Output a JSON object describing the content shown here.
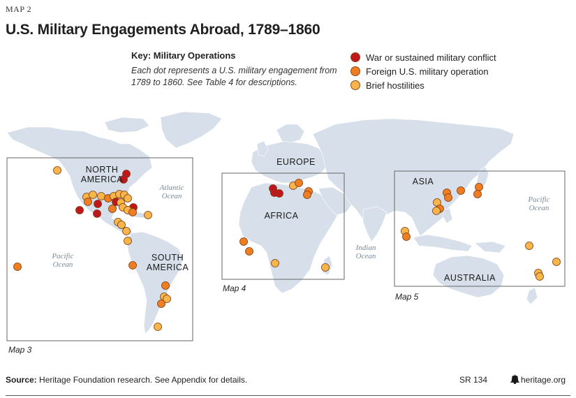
{
  "header": {
    "label": "MAP 2",
    "title": "U.S. Military Engagements Abroad, 1789–1860"
  },
  "key": {
    "title": "Key: Military Operations",
    "description": "Each dot represents a U.S. military engagement from 1789 to 1860. See Table 4 for descriptions.",
    "items": [
      {
        "label": "War or sustained military conflict",
        "color": "#c0171d"
      },
      {
        "label": "Foreign U.S. military operation",
        "color": "#ef7d22"
      },
      {
        "label": "Brief hostilities",
        "color": "#f7b54a"
      }
    ]
  },
  "map": {
    "land_color": "#d7e0ea",
    "regions": {
      "north_america": "NORTH\nAMERICA",
      "south_america": "SOUTH\nAMERICA",
      "europe": "EUROPE",
      "africa": "AFRICA",
      "asia": "ASIA",
      "australia": "AUSTRALIA"
    },
    "oceans": {
      "atlantic": "Atlantic\nOcean",
      "pacific_west": "Pacific\nOcean",
      "indian": "Indian\nOcean",
      "pacific_east": "Pacific\nOcean"
    },
    "insets": {
      "map3": "Map 3",
      "map4": "Map 4",
      "map5": "Map 5"
    }
  },
  "footer": {
    "source_label": "Source:",
    "source_text": " Heritage Foundation research. See Appendix for details.",
    "report_code": "SR 134",
    "site": "heritage.org",
    "logo_icon": "liberty-bell-icon"
  }
}
